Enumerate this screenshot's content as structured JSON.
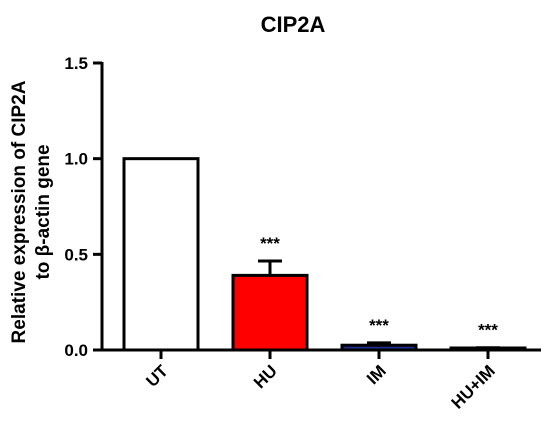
{
  "chart_data": {
    "type": "bar",
    "title": "CIP2A",
    "ylabel_lines": [
      "Relative expression of CIP2A",
      "to β-actin gene"
    ],
    "xlabel": "",
    "categories": [
      "UT",
      "HU",
      "IM",
      "HU+IM"
    ],
    "values": [
      1.0,
      0.39,
      0.025,
      0.008
    ],
    "errors": [
      0.0,
      0.075,
      0.012,
      0.004
    ],
    "significance": [
      "",
      "***",
      "***",
      "***"
    ],
    "bar_colors": [
      "#ffffff",
      "#ff0000",
      "#1f2d8f",
      "#555555"
    ],
    "ylim": [
      0,
      1.5
    ],
    "yticks": [
      0.0,
      0.5,
      1.0,
      1.5
    ],
    "ytick_labels": [
      "0.0",
      "0.5",
      "1.0",
      "1.5"
    ],
    "grid": false
  }
}
